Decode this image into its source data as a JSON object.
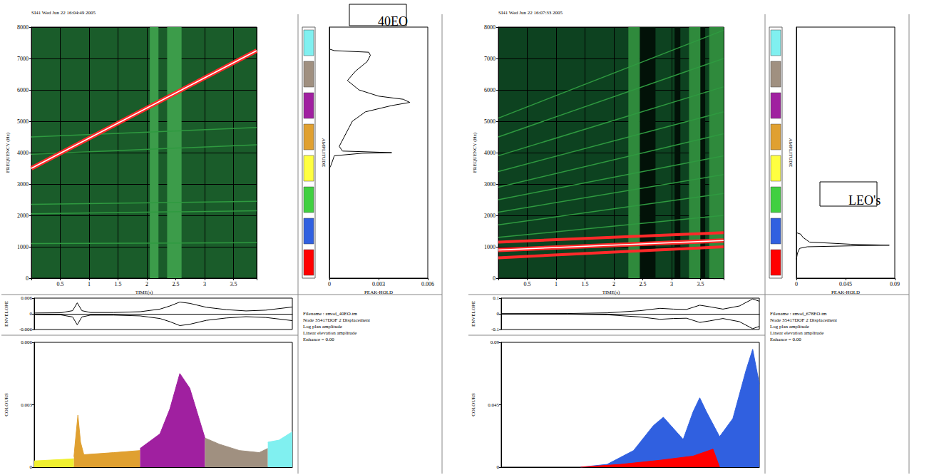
{
  "chart_data": [
    {
      "type": "spectrogram",
      "label": "40EO",
      "info": [
        "Filename : zmod_40EO.tm",
        "Node 35417DOF 2 Displacement",
        "Log plan amplitude",
        "Linear elevation amplitude",
        "Enhance = 0.00"
      ],
      "spectrogram": {
        "type": "line",
        "title": "SI41 Wed Jun 22 16:04:49 2005",
        "x_label": "TIME(s)",
        "y_label": "FREQUENCY (Hz)",
        "xlim": [
          0,
          3.9
        ],
        "xticks": [
          0.5,
          1,
          1.5,
          2,
          2.5,
          3,
          3.5
        ],
        "ylim": [
          0,
          8000
        ],
        "yticks": [
          0,
          1000,
          2000,
          3000,
          4000,
          5000,
          6000,
          7000,
          8000
        ],
        "grid": true,
        "color": "#1a5c2a",
        "bands": [
          {
            "x": [
              2.05,
              2.2
            ],
            "color": "#3c9c4a"
          },
          {
            "x": [
              2.35,
              2.6
            ],
            "color": "#3c9c4a"
          }
        ],
        "series": [
          {
            "color": "#2f9a40",
            "x": [
              0,
              3.9
            ],
            "values": [
              1100,
              1130
            ]
          },
          {
            "color": "#2f9a40",
            "x": [
              0,
              3.9
            ],
            "values": [
              2050,
              2150
            ]
          },
          {
            "color": "#2f9a40",
            "x": [
              0,
              3.9
            ],
            "values": [
              2350,
              2450
            ]
          },
          {
            "color": "#2f9a40",
            "x": [
              0,
              3.9
            ],
            "values": [
              3950,
              4250
            ]
          },
          {
            "color": "#2f9a40",
            "x": [
              0,
              3.9
            ],
            "values": [
              4500,
              4800
            ]
          },
          {
            "color": "#ff2a2a",
            "line_style": "highlight",
            "x": [
              0,
              3.9
            ],
            "values": [
              3500,
              7250
            ]
          }
        ]
      },
      "color_bands": {
        "type": "bar",
        "ranges": [
          [
            0,
            1000
          ],
          [
            1000,
            2000
          ],
          [
            2000,
            3000
          ],
          [
            3000,
            4000
          ],
          [
            4000,
            5000
          ],
          [
            5000,
            6000
          ],
          [
            6000,
            7000
          ],
          [
            7000,
            8000
          ]
        ],
        "colors": [
          "#ff0000",
          "#3060e0",
          "#40d040",
          "#ffff40",
          "#e0a030",
          "#a020a0",
          "#a09080",
          "#80f0f0"
        ],
        "ylim": [
          0,
          8000
        ]
      },
      "peak_hold": {
        "type": "line",
        "x_label": "PEAK-HOLD",
        "y_label": "AMPLITUDE",
        "xlim": [
          0,
          0.006
        ],
        "xticks": [
          0,
          0.003,
          0.006
        ],
        "ylim": [
          0,
          8000
        ],
        "tick_labels": "x",
        "color": "#000000",
        "y": [
          3500,
          3600,
          3900,
          3980,
          4000,
          4050,
          4200,
          4500,
          4800,
          5000,
          5300,
          5500,
          5600,
          5700,
          5800,
          6000,
          6300,
          6600,
          6900,
          7100,
          7200,
          7250,
          7300
        ],
        "values": [
          0,
          0.0001,
          0.0003,
          0.002,
          0.0038,
          0.0008,
          0.0006,
          0.0009,
          0.0012,
          0.0014,
          0.0022,
          0.0038,
          0.0049,
          0.0045,
          0.003,
          0.0018,
          0.0011,
          0.0016,
          0.0023,
          0.0025,
          0.0024,
          0.0003,
          0
        ]
      },
      "envelope": {
        "type": "line",
        "y_label": "ENVELOPE",
        "xlim": [
          0,
          3.9
        ],
        "ylim": [
          -0.006,
          0.006
        ],
        "yticks": [
          -0.006,
          0,
          0.006
        ],
        "tick_labels": "y",
        "series": [
          {
            "color": "#000000",
            "x": [
              0,
              0.4,
              0.58,
              0.65,
              0.72,
              0.85,
              1.2,
              1.6,
              1.9,
              2.05,
              2.2,
              2.35,
              2.6,
              2.9,
              3.2,
              3.5,
              3.9
            ],
            "values": [
              0.0003,
              0.0004,
              0.0012,
              0.0042,
              0.0012,
              0.0005,
              0.0005,
              0.0008,
              0.0018,
              0.003,
              0.0045,
              0.004,
              0.0025,
              0.0016,
              0.0011,
              0.0014,
              0.0026
            ]
          },
          {
            "color": "#000000",
            "x": [
              0,
              0.4,
              0.58,
              0.65,
              0.72,
              0.85,
              1.2,
              1.6,
              1.9,
              2.05,
              2.2,
              2.35,
              2.6,
              2.9,
              3.2,
              3.5,
              3.9
            ],
            "values": [
              -0.0003,
              -0.0004,
              -0.0012,
              -0.0042,
              -0.0012,
              -0.0005,
              -0.0005,
              -0.0008,
              -0.0018,
              -0.003,
              -0.0045,
              -0.004,
              -0.0025,
              -0.0016,
              -0.0011,
              -0.0014,
              -0.0026
            ]
          }
        ]
      },
      "band_amplitude": {
        "type": "area",
        "y_label": "COLOURS",
        "xlim": [
          0,
          3.9
        ],
        "ylim": [
          0,
          0.006
        ],
        "yticks": [
          0,
          0.003,
          0.006
        ],
        "tick_labels": "y",
        "series": [
          {
            "color": "#f0f030",
            "x": [
              0,
              0.6
            ],
            "values": [
              0.0003,
              0.0004
            ]
          },
          {
            "color": "#e0a030",
            "x": [
              0.6,
              0.62,
              0.66,
              0.7,
              0.75,
              1.2,
              1.6
            ],
            "values": [
              0.0005,
              0.0012,
              0.0025,
              0.0012,
              0.0006,
              0.0007,
              0.0008
            ]
          },
          {
            "color": "#a020a0",
            "x": [
              1.6,
              1.9,
              2.05,
              2.2,
              2.35,
              2.58
            ],
            "values": [
              0.0009,
              0.0016,
              0.0028,
              0.0045,
              0.0038,
              0.0014
            ]
          },
          {
            "color": "#a09080",
            "x": [
              2.58,
              2.8,
              3.1,
              3.4,
              3.53
            ],
            "values": [
              0.0014,
              0.0011,
              0.0008,
              0.0007,
              0.0009
            ]
          },
          {
            "color": "#80f0f0",
            "x": [
              3.53,
              3.7,
              3.9
            ],
            "values": [
              0.0012,
              0.0013,
              0.0017
            ]
          }
        ]
      }
    },
    {
      "type": "spectrogram",
      "label": "LEO's",
      "info": [
        "Filename : zmod_678EO.tm",
        "Node 35417DOF 2 Displacement",
        "Log plan amplitude",
        "Linear elevation amplitude",
        "Enhance = 0.00"
      ],
      "spectrogram": {
        "type": "line",
        "title": "SI41 Wed Jun 22 16:07:33 2005",
        "x_label": "TIME(s)",
        "y_label": "FREQUENCY (Hz)",
        "xlim": [
          0,
          3.9
        ],
        "xticks": [
          0.5,
          1,
          1.5,
          2,
          2.5,
          3,
          3.5
        ],
        "ylim": [
          0,
          8000
        ],
        "yticks": [
          0,
          1000,
          2000,
          3000,
          4000,
          5000,
          6000,
          7000,
          8000
        ],
        "grid": true,
        "color": "#0d4220",
        "bands": [
          {
            "x": [
              2.25,
              2.45
            ],
            "color": "#2f8a3c"
          },
          {
            "x": [
              2.45,
              2.72
            ],
            "color": "#021208"
          },
          {
            "x": [
              3.05,
              3.15
            ],
            "color": "#021208"
          },
          {
            "x": [
              3.3,
              3.5
            ],
            "color": "#2f8a3c"
          },
          {
            "x": [
              3.5,
              3.58
            ],
            "color": "#021208"
          },
          {
            "x": [
              3.65,
              3.9
            ],
            "color": "#2f8a3c"
          }
        ],
        "series": [
          {
            "color": "#2f9a40",
            "x": [
              0,
              3.9
            ],
            "values": [
              1300,
              2000
            ]
          },
          {
            "color": "#2f9a40",
            "x": [
              0,
              3.9
            ],
            "values": [
              1700,
              2700
            ]
          },
          {
            "color": "#2f9a40",
            "x": [
              0,
              3.9
            ],
            "values": [
              2100,
              3300
            ]
          },
          {
            "color": "#2f9a40",
            "x": [
              0,
              3.9
            ],
            "values": [
              2500,
              3900
            ]
          },
          {
            "color": "#2f9a40",
            "x": [
              0,
              3.9
            ],
            "values": [
              2900,
              4600
            ]
          },
          {
            "color": "#2f9a40",
            "x": [
              0,
              3.9
            ],
            "values": [
              3400,
              5300
            ]
          },
          {
            "color": "#2f9a40",
            "x": [
              0,
              3.9
            ],
            "values": [
              3900,
              6100
            ]
          },
          {
            "color": "#2f9a40",
            "x": [
              0,
              3.9
            ],
            "values": [
              4500,
              7000
            ]
          },
          {
            "color": "#2f9a40",
            "x": [
              0,
              3.9
            ],
            "values": [
              5100,
              7900
            ]
          },
          {
            "color": "#ff2a2a",
            "x": [
              0,
              3.9
            ],
            "values": [
              650,
              1000
            ]
          },
          {
            "color": "#ff2a2a",
            "line_style": "highlight",
            "x": [
              0,
              3.9
            ],
            "values": [
              900,
              1200
            ]
          },
          {
            "color": "#ff2a2a",
            "x": [
              0,
              3.9
            ],
            "values": [
              1150,
              1450
            ]
          }
        ]
      },
      "color_bands": {
        "type": "bar",
        "ranges": [
          [
            0,
            1000
          ],
          [
            1000,
            2000
          ],
          [
            2000,
            3000
          ],
          [
            3000,
            4000
          ],
          [
            4000,
            5000
          ],
          [
            5000,
            6000
          ],
          [
            6000,
            7000
          ],
          [
            7000,
            8000
          ]
        ],
        "colors": [
          "#ff0000",
          "#3060e0",
          "#40d040",
          "#ffff40",
          "#e0a030",
          "#a020a0",
          "#a09080",
          "#80f0f0"
        ],
        "ylim": [
          0,
          8000
        ]
      },
      "peak_hold": {
        "type": "line",
        "x_label": "PEAK-HOLD",
        "y_label": "AMPLITUDE",
        "xlim": [
          0,
          0.09
        ],
        "xticks": [
          0,
          0.045,
          0.09
        ],
        "ylim": [
          0,
          8000
        ],
        "tick_labels": "x",
        "color": "#000000",
        "y": [
          600,
          800,
          950,
          1000,
          1030,
          1050,
          1080,
          1150,
          1300,
          1400,
          1450
        ],
        "values": [
          0,
          0.001,
          0.003,
          0.01,
          0.05,
          0.085,
          0.05,
          0.012,
          0.006,
          0.004,
          0
        ]
      },
      "envelope": {
        "type": "line",
        "y_label": "ENVELOPE",
        "xlim": [
          0,
          3.9
        ],
        "ylim": [
          -0.1,
          0.1
        ],
        "yticks": [
          -0.1,
          0,
          0.1
        ],
        "tick_labels": "y",
        "series": [
          {
            "color": "#000000",
            "x": [
              0,
              1.0,
              1.6,
              2.1,
              2.4,
              2.6,
              2.8,
              3.0,
              3.15,
              3.35,
              3.6,
              3.8,
              3.9
            ],
            "values": [
              0.001,
              0.002,
              0.006,
              0.02,
              0.035,
              0.03,
              0.028,
              0.055,
              0.045,
              0.03,
              0.05,
              0.095,
              0.08
            ]
          },
          {
            "color": "#000000",
            "x": [
              0,
              1.0,
              1.6,
              2.1,
              2.4,
              2.6,
              2.8,
              3.0,
              3.15,
              3.35,
              3.6,
              3.8,
              3.9
            ],
            "values": [
              -0.001,
              -0.002,
              -0.006,
              -0.02,
              -0.035,
              -0.03,
              -0.028,
              -0.055,
              -0.045,
              -0.03,
              -0.05,
              -0.095,
              -0.08
            ]
          }
        ]
      },
      "band_amplitude": {
        "type": "area",
        "y_label": "COLOURS",
        "xlim": [
          0,
          3.9
        ],
        "ylim": [
          0,
          0.09
        ],
        "yticks": [
          0,
          0.045,
          0.09
        ],
        "tick_labels": "y",
        "series": [
          {
            "color": "#3060e0",
            "x": [
              1.2,
              1.6,
              2.0,
              2.3,
              2.45,
              2.6,
              2.75,
              2.9,
              3.0,
              3.1,
              3.3,
              3.5,
              3.7,
              3.8,
              3.9
            ],
            "values": [
              0,
              0.002,
              0.012,
              0.03,
              0.036,
              0.028,
              0.02,
              0.04,
              0.05,
              0.04,
              0.022,
              0.035,
              0.07,
              0.085,
              0.06
            ]
          },
          {
            "color": "#ff0000",
            "x": [
              1.2,
              1.8,
              2.4,
              2.9,
              3.2,
              3.3
            ],
            "values": [
              0,
              0.002,
              0.005,
              0.008,
              0.013,
              0
            ]
          }
        ]
      }
    }
  ]
}
